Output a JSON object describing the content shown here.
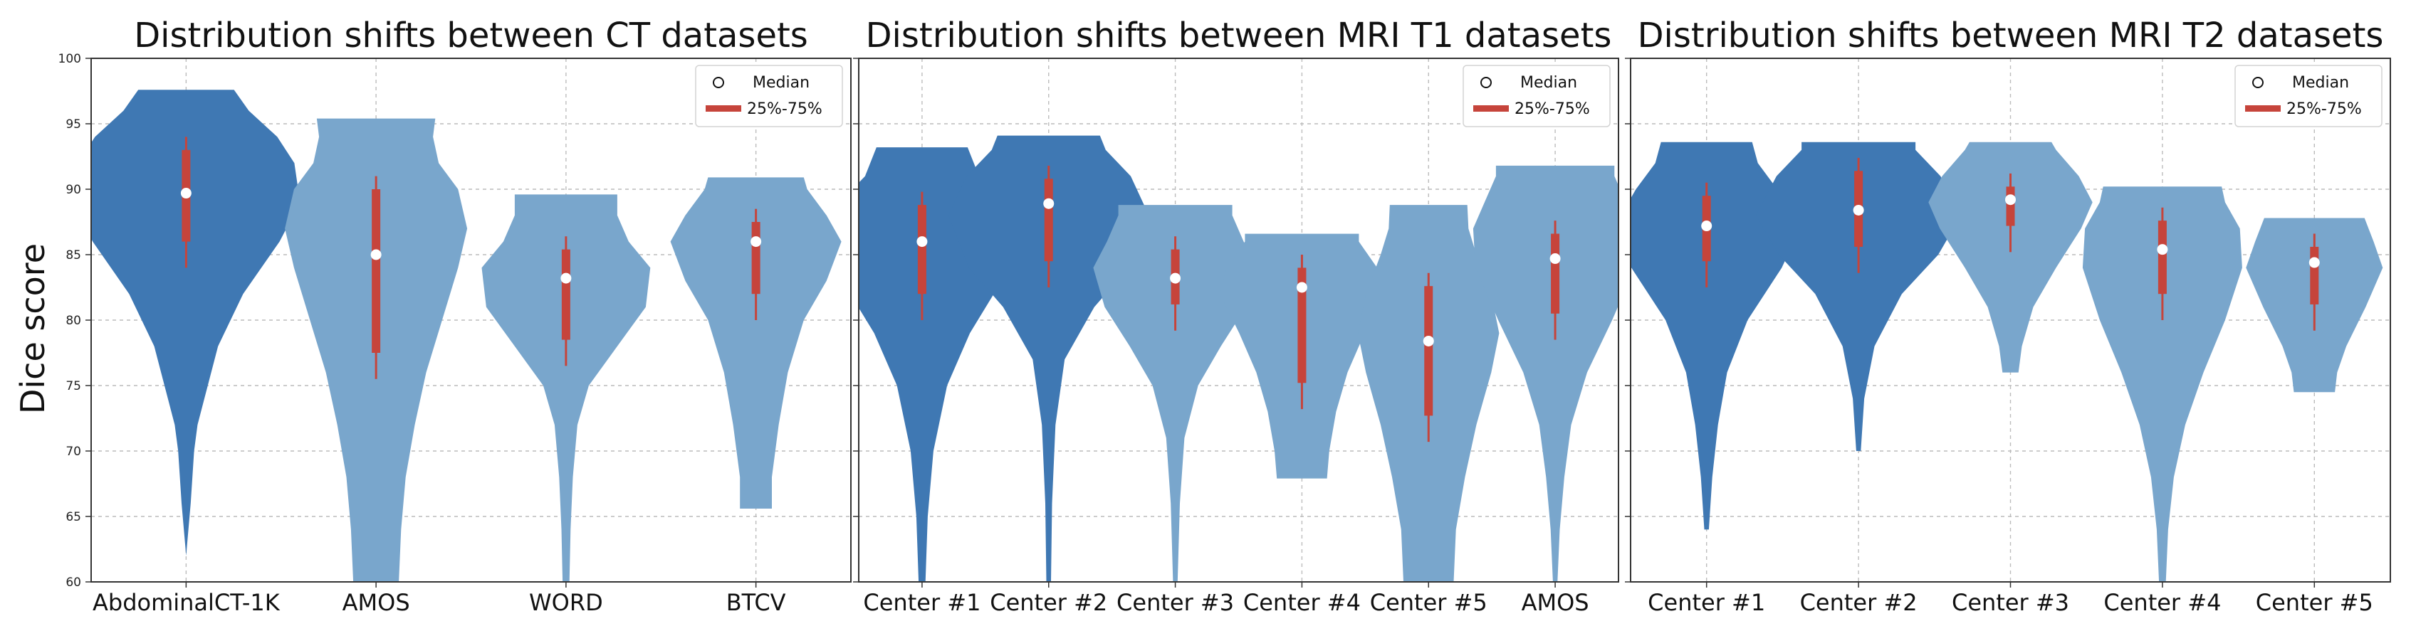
{
  "figure": {
    "ylabel": "Dice score",
    "legend": {
      "median_label": "Median",
      "iqr_label": "25%-75%"
    },
    "colors": {
      "dark": "#3f78b3",
      "light": "#79a6cc",
      "iqr": "#c6443b",
      "median": "#ffffff",
      "grid": "#bcbcbc",
      "axis": "#333333"
    }
  },
  "chart_data": [
    {
      "type": "violin",
      "title": "Distribution shifts between CT datasets",
      "ylabel": "Dice score",
      "ylim": [
        60,
        100
      ],
      "yticks": [
        60,
        65,
        70,
        75,
        80,
        85,
        90,
        95,
        100
      ],
      "legend": "top-right",
      "grid": true,
      "series": [
        {
          "name": "AbdominalCT-1K",
          "style": "dark",
          "median": 89.7,
          "q1": 86.0,
          "q3": 93.0,
          "min": 62.0,
          "max": 97.6,
          "profile": [
            [
              62,
              0.0
            ],
            [
              66,
              0.04
            ],
            [
              70,
              0.07
            ],
            [
              72,
              0.1
            ],
            [
              74,
              0.16
            ],
            [
              78,
              0.28
            ],
            [
              82,
              0.5
            ],
            [
              86,
              0.82
            ],
            [
              89,
              1.0
            ],
            [
              92,
              0.95
            ],
            [
              94,
              0.8
            ],
            [
              96,
              0.55
            ],
            [
              97.6,
              0.42
            ]
          ]
        },
        {
          "name": "AMOS",
          "style": "light",
          "median": 85.0,
          "q1": 77.5,
          "q3": 90.0,
          "min": 60.0,
          "max": 95.4,
          "profile": [
            [
              60,
              0.2
            ],
            [
              64,
              0.22
            ],
            [
              68,
              0.26
            ],
            [
              72,
              0.34
            ],
            [
              76,
              0.44
            ],
            [
              80,
              0.58
            ],
            [
              84,
              0.72
            ],
            [
              87,
              0.8
            ],
            [
              90,
              0.72
            ],
            [
              92,
              0.55
            ],
            [
              94,
              0.5
            ],
            [
              95.4,
              0.52
            ]
          ]
        },
        {
          "name": "WORD",
          "style": "light",
          "median": 83.2,
          "q1": 78.5,
          "q3": 85.4,
          "min": 60.0,
          "max": 89.6,
          "profile": [
            [
              60,
              0.03
            ],
            [
              64,
              0.04
            ],
            [
              68,
              0.06
            ],
            [
              72,
              0.1
            ],
            [
              75,
              0.2
            ],
            [
              78,
              0.45
            ],
            [
              81,
              0.7
            ],
            [
              84,
              0.74
            ],
            [
              86,
              0.55
            ],
            [
              88,
              0.45
            ],
            [
              89.6,
              0.45
            ]
          ]
        },
        {
          "name": "BTCV",
          "style": "light",
          "median": 86.0,
          "q1": 82.0,
          "q3": 87.5,
          "min": 65.6,
          "max": 90.9,
          "profile": [
            [
              65.6,
              0.14
            ],
            [
              68,
              0.14
            ],
            [
              72,
              0.2
            ],
            [
              76,
              0.28
            ],
            [
              80,
              0.42
            ],
            [
              83,
              0.62
            ],
            [
              86,
              0.75
            ],
            [
              88,
              0.62
            ],
            [
              90,
              0.45
            ],
            [
              90.9,
              0.42
            ]
          ]
        }
      ]
    },
    {
      "type": "violin",
      "title": "Distribution shifts between MRI T1 datasets",
      "ylabel": "Dice score",
      "ylim": [
        60,
        100
      ],
      "yticks": [
        60,
        65,
        70,
        75,
        80,
        85,
        90,
        95,
        100
      ],
      "legend": "top-right",
      "grid": true,
      "series": [
        {
          "name": "Center #1",
          "style": "dark",
          "median": 86.0,
          "q1": 82.0,
          "q3": 88.8,
          "min": 60.0,
          "max": 93.2,
          "profile": [
            [
              60,
              0.03
            ],
            [
              65,
              0.05
            ],
            [
              70,
              0.1
            ],
            [
              75,
              0.22
            ],
            [
              79,
              0.42
            ],
            [
              83,
              0.7
            ],
            [
              86,
              0.82
            ],
            [
              89,
              0.72
            ],
            [
              91,
              0.5
            ],
            [
              93.2,
              0.4
            ]
          ]
        },
        {
          "name": "Center #2",
          "style": "dark",
          "median": 88.9,
          "q1": 84.5,
          "q3": 90.8,
          "min": 60.0,
          "max": 94.1,
          "profile": [
            [
              60,
              0.02
            ],
            [
              66,
              0.03
            ],
            [
              72,
              0.06
            ],
            [
              77,
              0.14
            ],
            [
              81,
              0.4
            ],
            [
              84,
              0.7
            ],
            [
              88,
              0.88
            ],
            [
              91,
              0.72
            ],
            [
              93,
              0.5
            ],
            [
              94.1,
              0.45
            ]
          ]
        },
        {
          "name": "Center #3",
          "style": "light",
          "median": 83.2,
          "q1": 81.2,
          "q3": 85.4,
          "min": 60.0,
          "max": 88.8,
          "profile": [
            [
              60,
              0.02
            ],
            [
              66,
              0.04
            ],
            [
              71,
              0.08
            ],
            [
              75,
              0.2
            ],
            [
              78,
              0.4
            ],
            [
              81,
              0.62
            ],
            [
              84,
              0.72
            ],
            [
              86,
              0.6
            ],
            [
              88,
              0.5
            ],
            [
              88.8,
              0.5
            ]
          ]
        },
        {
          "name": "Center #4",
          "style": "light",
          "median": 82.5,
          "q1": 75.2,
          "q3": 84.0,
          "min": 67.9,
          "max": 86.6,
          "profile": [
            [
              67.9,
              0.22
            ],
            [
              70,
              0.24
            ],
            [
              73,
              0.3
            ],
            [
              76,
              0.4
            ],
            [
              79,
              0.55
            ],
            [
              82,
              0.72
            ],
            [
              84,
              0.66
            ],
            [
              86,
              0.5
            ],
            [
              86.6,
              0.5
            ]
          ]
        },
        {
          "name": "Center #5",
          "style": "light",
          "median": 78.4,
          "q1": 72.7,
          "q3": 82.6,
          "min": 60.0,
          "max": 88.8,
          "profile": [
            [
              60,
              0.22
            ],
            [
              64,
              0.24
            ],
            [
              68,
              0.32
            ],
            [
              72,
              0.42
            ],
            [
              76,
              0.55
            ],
            [
              79,
              0.62
            ],
            [
              82,
              0.55
            ],
            [
              85,
              0.42
            ],
            [
              87,
              0.35
            ],
            [
              88.8,
              0.34
            ]
          ]
        },
        {
          "name": "AMOS",
          "style": "light",
          "median": 84.7,
          "q1": 80.5,
          "q3": 86.6,
          "min": 60.0,
          "max": 91.8,
          "profile": [
            [
              60,
              0.02
            ],
            [
              64,
              0.04
            ],
            [
              68,
              0.08
            ],
            [
              72,
              0.14
            ],
            [
              76,
              0.28
            ],
            [
              80,
              0.5
            ],
            [
              84,
              0.7
            ],
            [
              87,
              0.72
            ],
            [
              89,
              0.62
            ],
            [
              91,
              0.52
            ],
            [
              91.8,
              0.52
            ]
          ]
        }
      ]
    },
    {
      "type": "violin",
      "title": "Distribution shifts between MRI T2 datasets",
      "ylabel": "Dice score",
      "ylim": [
        60,
        100
      ],
      "yticks": [
        60,
        65,
        70,
        75,
        80,
        85,
        90,
        95,
        100
      ],
      "legend": "top-right",
      "grid": true,
      "series": [
        {
          "name": "Center #1",
          "style": "dark",
          "median": 87.2,
          "q1": 84.5,
          "q3": 89.5,
          "min": 64.0,
          "max": 93.6,
          "profile": [
            [
              64,
              0.02
            ],
            [
              68,
              0.05
            ],
            [
              72,
              0.1
            ],
            [
              76,
              0.18
            ],
            [
              80,
              0.36
            ],
            [
              84,
              0.66
            ],
            [
              87,
              0.82
            ],
            [
              90,
              0.62
            ],
            [
              92,
              0.45
            ],
            [
              93.6,
              0.4
            ]
          ]
        },
        {
          "name": "Center #2",
          "style": "dark",
          "median": 88.4,
          "q1": 85.6,
          "q3": 91.4,
          "min": 70.0,
          "max": 93.6,
          "profile": [
            [
              70,
              0.02
            ],
            [
              74,
              0.05
            ],
            [
              78,
              0.14
            ],
            [
              82,
              0.38
            ],
            [
              85,
              0.7
            ],
            [
              88,
              0.9
            ],
            [
              91,
              0.72
            ],
            [
              93,
              0.5
            ],
            [
              93.6,
              0.5
            ]
          ]
        },
        {
          "name": "Center #3",
          "style": "light",
          "median": 89.2,
          "q1": 87.2,
          "q3": 90.2,
          "min": 76.0,
          "max": 93.6,
          "profile": [
            [
              76,
              0.07
            ],
            [
              78,
              0.1
            ],
            [
              81,
              0.2
            ],
            [
              84,
              0.4
            ],
            [
              87,
              0.62
            ],
            [
              89,
              0.72
            ],
            [
              91,
              0.6
            ],
            [
              93,
              0.4
            ],
            [
              93.6,
              0.36
            ]
          ]
        },
        {
          "name": "Center #4",
          "style": "light",
          "median": 85.4,
          "q1": 82.0,
          "q3": 87.6,
          "min": 60.0,
          "max": 90.2,
          "profile": [
            [
              60,
              0.03
            ],
            [
              64,
              0.05
            ],
            [
              68,
              0.1
            ],
            [
              72,
              0.2
            ],
            [
              76,
              0.36
            ],
            [
              80,
              0.55
            ],
            [
              84,
              0.7
            ],
            [
              87,
              0.68
            ],
            [
              89,
              0.55
            ],
            [
              90.2,
              0.52
            ]
          ]
        },
        {
          "name": "Center #5",
          "style": "light",
          "median": 84.4,
          "q1": 81.2,
          "q3": 85.6,
          "min": 74.5,
          "max": 87.8,
          "profile": [
            [
              74.5,
              0.18
            ],
            [
              76,
              0.2
            ],
            [
              78,
              0.28
            ],
            [
              81,
              0.45
            ],
            [
              84,
              0.6
            ],
            [
              86,
              0.52
            ],
            [
              87.8,
              0.44
            ]
          ]
        }
      ]
    }
  ]
}
